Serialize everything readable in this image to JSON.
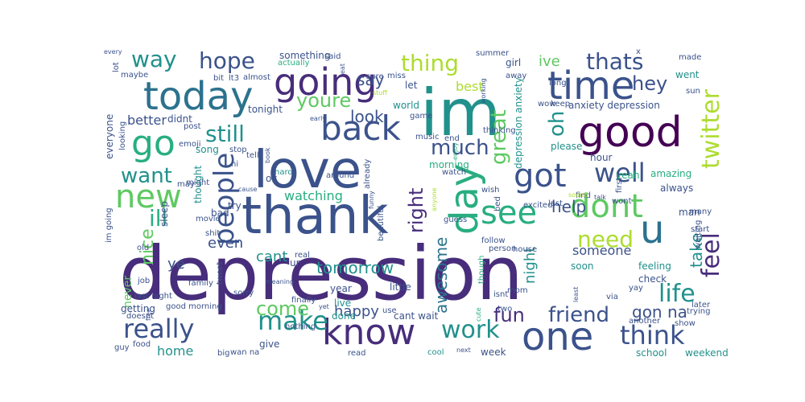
{
  "background": "#ffffff",
  "palette": {
    "purple": "#440154",
    "indigo": "#472d7b",
    "blue": "#3b528b",
    "steel": "#2c728e",
    "teal": "#21918c",
    "green": "#28ae80",
    "lime": "#5ec962",
    "yellow": "#addc30"
  },
  "words": [
    {
      "text": "depression",
      "color": "#472d7b"
    },
    {
      "text": "thank",
      "color": "#3b528b"
    },
    {
      "text": "love",
      "color": "#3b528b"
    },
    {
      "text": "im",
      "color": "#21918c"
    },
    {
      "text": "day",
      "color": "#28ae80"
    },
    {
      "text": "today",
      "color": "#2c728e"
    },
    {
      "text": "good",
      "color": "#440154"
    },
    {
      "text": "time",
      "color": "#3b528b"
    },
    {
      "text": "going",
      "color": "#472d7b"
    },
    {
      "text": "know",
      "color": "#472d7b"
    },
    {
      "text": "one",
      "color": "#3b528b"
    },
    {
      "text": "back",
      "color": "#3b528b"
    },
    {
      "text": "new",
      "color": "#5ec962"
    },
    {
      "text": "u",
      "color": "#2c728e"
    },
    {
      "text": "dont",
      "color": "#5ec962"
    },
    {
      "text": "go",
      "color": "#28ae80"
    },
    {
      "text": "see",
      "color": "#28ae80"
    },
    {
      "text": "got",
      "color": "#3b528b"
    },
    {
      "text": "make",
      "color": "#21918c"
    },
    {
      "text": "really",
      "color": "#3b528b"
    },
    {
      "text": "people",
      "color": "#3b528b"
    },
    {
      "text": "think",
      "color": "#3b528b"
    },
    {
      "text": "work",
      "color": "#21918c"
    },
    {
      "text": "well",
      "color": "#3b528b"
    },
    {
      "text": "thing",
      "color": "#addc30"
    },
    {
      "text": "hope",
      "color": "#3b528b"
    },
    {
      "text": "thats",
      "color": "#3b528b"
    },
    {
      "text": "way",
      "color": "#21918c"
    },
    {
      "text": "still",
      "color": "#21918c"
    },
    {
      "text": "twitter",
      "color": "#addc30"
    },
    {
      "text": "feel",
      "color": "#472d7b"
    },
    {
      "text": "life",
      "color": "#21918c"
    },
    {
      "text": "need",
      "color": "#addc30"
    },
    {
      "text": "friend",
      "color": "#3b528b"
    },
    {
      "text": "great",
      "color": "#5ec962"
    },
    {
      "text": "much",
      "color": "#3b528b"
    },
    {
      "text": "want",
      "color": "#21918c"
    },
    {
      "text": "hey",
      "color": "#3b528b"
    },
    {
      "text": "youre",
      "color": "#5ec962"
    },
    {
      "text": "come",
      "color": "#5ec962"
    },
    {
      "text": "right",
      "color": "#472d7b"
    },
    {
      "text": "fun",
      "color": "#472d7b"
    },
    {
      "text": "ill",
      "color": "#28ae80"
    },
    {
      "text": "oh",
      "color": "#21918c"
    },
    {
      "text": "say",
      "color": "#3b528b"
    },
    {
      "text": "look",
      "color": "#3b528b"
    },
    {
      "text": "ive",
      "color": "#5ec962"
    },
    {
      "text": "help",
      "color": "#3b528b"
    },
    {
      "text": "take",
      "color": "#21918c"
    },
    {
      "text": "nice",
      "color": "#5ec962"
    },
    {
      "text": "awesome",
      "color": "#2c728e"
    },
    {
      "text": "happy",
      "color": "#3b528b"
    },
    {
      "text": "tomorrow",
      "color": "#21918c"
    },
    {
      "text": "watching",
      "color": "#28ae80"
    },
    {
      "text": "night",
      "color": "#21918c"
    },
    {
      "text": "gon na",
      "color": "#3b528b"
    },
    {
      "text": "cant",
      "color": "#21918c"
    },
    {
      "text": "even",
      "color": "#3b528b"
    },
    {
      "text": "someone",
      "color": "#3b528b"
    },
    {
      "text": "best",
      "color": "#addc30"
    },
    {
      "text": "better",
      "color": "#3b528b"
    },
    {
      "text": "home",
      "color": "#21918c"
    },
    {
      "text": "ye",
      "color": "#3b528b"
    },
    {
      "text": "never",
      "color": "#5ec962"
    },
    {
      "text": "tonight",
      "color": "#3b528b"
    },
    {
      "text": "didnt",
      "color": "#3b528b"
    },
    {
      "text": "song",
      "color": "#21918c"
    },
    {
      "text": "world",
      "color": "#21918c"
    },
    {
      "text": "let",
      "color": "#3b528b"
    },
    {
      "text": "anxiety depression",
      "color": "#3b528b"
    },
    {
      "text": "depression anxiety",
      "color": "#21918c"
    },
    {
      "text": "morning",
      "color": "#28ae80"
    },
    {
      "text": "cant wait",
      "color": "#3b528b"
    },
    {
      "text": "year",
      "color": "#3b528b"
    },
    {
      "text": "live",
      "color": "#21918c"
    },
    {
      "text": "done",
      "color": "#21918c"
    },
    {
      "text": "little",
      "color": "#3b528b"
    },
    {
      "text": "feeling",
      "color": "#21918c"
    },
    {
      "text": "check",
      "color": "#3b528b"
    },
    {
      "text": "always",
      "color": "#3b528b"
    },
    {
      "text": "hour",
      "color": "#3b528b"
    },
    {
      "text": "yeah",
      "color": "#28ae80"
    },
    {
      "text": "amazing",
      "color": "#28ae80"
    },
    {
      "text": "please",
      "color": "#21918c"
    },
    {
      "text": "keep",
      "color": "#3b528b"
    },
    {
      "text": "school",
      "color": "#21918c"
    },
    {
      "text": "weekend",
      "color": "#21918c"
    },
    {
      "text": "week",
      "color": "#3b528b"
    },
    {
      "text": "cool",
      "color": "#21918c"
    },
    {
      "text": "man",
      "color": "#3b528b"
    },
    {
      "text": "soon",
      "color": "#21918c"
    },
    {
      "text": "getting",
      "color": "#3b528b"
    },
    {
      "text": "give",
      "color": "#3b528b"
    },
    {
      "text": "guy",
      "color": "#3b528b"
    },
    {
      "text": "bad",
      "color": "#3b528b"
    },
    {
      "text": "try",
      "color": "#3b528b"
    },
    {
      "text": "ok",
      "color": "#3b528b"
    },
    {
      "text": "hard",
      "color": "#21918c"
    },
    {
      "text": "around",
      "color": "#3b528b"
    },
    {
      "text": "sleep",
      "color": "#3b528b"
    },
    {
      "text": "thought",
      "color": "#21918c"
    },
    {
      "text": "everyone",
      "color": "#3b528b"
    },
    {
      "text": "something",
      "color": "#3b528b"
    },
    {
      "text": "said",
      "color": "#3b528b"
    },
    {
      "text": "summer",
      "color": "#3b528b"
    },
    {
      "text": "girl",
      "color": "#3b528b"
    },
    {
      "text": "made",
      "color": "#3b528b"
    },
    {
      "text": "went",
      "color": "#21918c"
    },
    {
      "text": "sun",
      "color": "#3b528b"
    },
    {
      "text": "long",
      "color": "#3b528b"
    },
    {
      "text": "wow",
      "color": "#3b528b"
    },
    {
      "text": "lot",
      "color": "#3b528b"
    },
    {
      "text": "maybe",
      "color": "#3b528b"
    },
    {
      "text": "every",
      "color": "#3b528b"
    },
    {
      "text": "bit",
      "color": "#3b528b"
    },
    {
      "text": "lt3",
      "color": "#3b528b"
    },
    {
      "text": "almost",
      "color": "#3b528b"
    },
    {
      "text": "eat",
      "color": "#3b528b"
    },
    {
      "text": "actually",
      "color": "#28ae80"
    },
    {
      "text": "sure",
      "color": "#3b528b"
    },
    {
      "text": "miss",
      "color": "#3b528b"
    },
    {
      "text": "stuff",
      "color": "#addc30"
    },
    {
      "text": "game",
      "color": "#3b528b"
    },
    {
      "text": "music",
      "color": "#3b528b"
    },
    {
      "text": "end",
      "color": "#3b528b"
    },
    {
      "text": "watch",
      "color": "#3b528b"
    },
    {
      "text": "enjoy",
      "color": "#28ae80"
    },
    {
      "text": "thinking",
      "color": "#3b528b"
    },
    {
      "text": "first",
      "color": "#3b528b"
    },
    {
      "text": "talk",
      "color": "#3b528b"
    },
    {
      "text": "wont",
      "color": "#3b528b"
    },
    {
      "text": "find",
      "color": "#3b528b"
    },
    {
      "text": "sound",
      "color": "#addc30"
    },
    {
      "text": "excited",
      "color": "#3b528b"
    },
    {
      "text": "last",
      "color": "#3b528b"
    },
    {
      "text": "bed",
      "color": "#3b528b"
    },
    {
      "text": "wish",
      "color": "#3b528b"
    },
    {
      "text": "guess",
      "color": "#3b528b"
    },
    {
      "text": "follow",
      "color": "#3b528b"
    },
    {
      "text": "person",
      "color": "#3b528b"
    },
    {
      "text": "house",
      "color": "#3b528b"
    },
    {
      "text": "mom",
      "color": "#3b528b"
    },
    {
      "text": "least",
      "color": "#3b528b"
    },
    {
      "text": "though",
      "color": "#28ae80"
    },
    {
      "text": "isnt",
      "color": "#3b528b"
    },
    {
      "text": "two",
      "color": "#3b528b"
    },
    {
      "text": "cute",
      "color": "#28ae80"
    },
    {
      "text": "next",
      "color": "#3b528b"
    },
    {
      "text": "read",
      "color": "#3b528b"
    },
    {
      "text": "use",
      "color": "#3b528b"
    },
    {
      "text": "yet",
      "color": "#3b528b"
    },
    {
      "text": "finally",
      "color": "#3b528b"
    },
    {
      "text": "nothing",
      "color": "#3b528b"
    },
    {
      "text": "wan na",
      "color": "#3b528b"
    },
    {
      "text": "big",
      "color": "#3b528b"
    },
    {
      "text": "doesnt",
      "color": "#3b528b"
    },
    {
      "text": "free",
      "color": "#3b528b"
    },
    {
      "text": "food",
      "color": "#3b528b"
    },
    {
      "text": "job",
      "color": "#3b528b"
    },
    {
      "text": "last night",
      "color": "#3b528b"
    },
    {
      "text": "good morning",
      "color": "#3b528b"
    },
    {
      "text": "family",
      "color": "#3b528b"
    },
    {
      "text": "tweet",
      "color": "#3b528b"
    },
    {
      "text": "sorry",
      "color": "#3b528b"
    },
    {
      "text": "meaning",
      "color": "#3b528b"
    },
    {
      "text": "movie",
      "color": "#3b528b"
    },
    {
      "text": "shit",
      "color": "#3b528b"
    },
    {
      "text": "old",
      "color": "#3b528b"
    },
    {
      "text": "im going",
      "color": "#3b528b"
    },
    {
      "text": "real",
      "color": "#3b528b"
    },
    {
      "text": "ur",
      "color": "#3b528b"
    },
    {
      "text": "book",
      "color": "#3b528b"
    },
    {
      "text": "stop",
      "color": "#3b528b"
    },
    {
      "text": "tell",
      "color": "#3b528b"
    },
    {
      "text": "hi",
      "color": "#3b528b"
    },
    {
      "text": "cause",
      "color": "#3b528b"
    },
    {
      "text": "post",
      "color": "#3b528b"
    },
    {
      "text": "emoji",
      "color": "#3b528b"
    },
    {
      "text": "might",
      "color": "#3b528b"
    },
    {
      "text": "may",
      "color": "#3b528b"
    },
    {
      "text": "looking",
      "color": "#3b528b"
    },
    {
      "text": "early",
      "color": "#3b528b"
    },
    {
      "text": "already",
      "color": "#3b528b"
    },
    {
      "text": "funny",
      "color": "#3b528b"
    },
    {
      "text": "beautiful",
      "color": "#3b528b"
    },
    {
      "text": "anyone",
      "color": "#addc30"
    },
    {
      "text": "working",
      "color": "#3b528b"
    },
    {
      "text": "away",
      "color": "#3b528b"
    },
    {
      "text": "x",
      "color": "#3b528b"
    },
    {
      "text": "many",
      "color": "#3b528b"
    },
    {
      "text": "start",
      "color": "#3b528b"
    },
    {
      "text": "waiting",
      "color": "#3b528b"
    },
    {
      "text": "later",
      "color": "#3b528b"
    },
    {
      "text": "trying",
      "color": "#3b528b"
    },
    {
      "text": "show",
      "color": "#3b528b"
    },
    {
      "text": "another",
      "color": "#3b528b"
    },
    {
      "text": "via",
      "color": "#3b528b"
    },
    {
      "text": "yay",
      "color": "#3b528b"
    }
  ]
}
